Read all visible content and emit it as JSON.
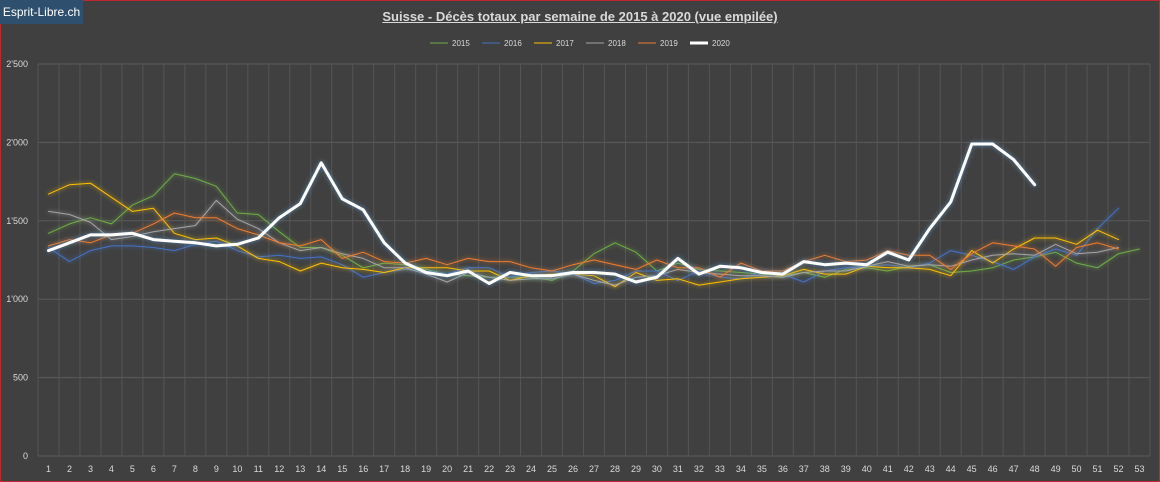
{
  "watermark": "Esprit-Libre.ch",
  "chart_data": {
    "type": "line",
    "title": "Suisse - Décès totaux par semaine de 2015  à 2020  (vue empilée)",
    "xlabel": "",
    "ylabel": "",
    "x": [
      1,
      2,
      3,
      4,
      5,
      6,
      7,
      8,
      9,
      10,
      11,
      12,
      13,
      14,
      15,
      16,
      17,
      18,
      19,
      20,
      21,
      22,
      23,
      24,
      25,
      26,
      27,
      28,
      29,
      30,
      31,
      32,
      33,
      34,
      35,
      36,
      37,
      38,
      39,
      40,
      41,
      42,
      43,
      44,
      45,
      46,
      47,
      48,
      49,
      50,
      51,
      52,
      53
    ],
    "ylim": [
      0,
      2500
    ],
    "yticks": [
      0,
      500,
      1000,
      1500,
      2000,
      2500
    ],
    "ytick_labels": [
      "0",
      "500",
      "1'000",
      "1'500",
      "2'000",
      "2'500"
    ],
    "grid": true,
    "legend_position": "top-center",
    "series": [
      {
        "name": "2015",
        "color": "#70ad47",
        "values": [
          1420,
          1480,
          1520,
          1480,
          1600,
          1660,
          1800,
          1770,
          1720,
          1550,
          1540,
          1430,
          1330,
          1330,
          1280,
          1200,
          1230,
          1220,
          1190,
          1160,
          1150,
          1140,
          1140,
          1140,
          1120,
          1180,
          1290,
          1360,
          1300,
          1180,
          1230,
          1190,
          1180,
          1170,
          1160,
          1150,
          1170,
          1140,
          1190,
          1200,
          1180,
          1210,
          1220,
          1170,
          1180,
          1200,
          1250,
          1270,
          1300,
          1230,
          1200,
          1290,
          1320
        ]
      },
      {
        "name": "2016",
        "color": "#4472c4",
        "values": [
          1330,
          1240,
          1310,
          1340,
          1340,
          1330,
          1310,
          1350,
          1370,
          1310,
          1270,
          1280,
          1260,
          1270,
          1220,
          1140,
          1170,
          1190,
          1180,
          1160,
          1200,
          1200,
          1140,
          1170,
          1180,
          1160,
          1100,
          1120,
          1180,
          1180,
          1120,
          1180,
          1140,
          1130,
          1170,
          1160,
          1110,
          1180,
          1200,
          1210,
          1220,
          1200,
          1230,
          1310,
          1280,
          1240,
          1190,
          1270,
          1320,
          1280,
          1450,
          1580,
          null
        ]
      },
      {
        "name": "2017",
        "color": "#ffc000",
        "values": [
          1670,
          1730,
          1740,
          1650,
          1560,
          1580,
          1420,
          1380,
          1390,
          1340,
          1260,
          1240,
          1180,
          1230,
          1200,
          1190,
          1170,
          1200,
          1200,
          1200,
          1180,
          1180,
          1120,
          1150,
          1160,
          1160,
          1150,
          1080,
          1170,
          1120,
          1130,
          1090,
          1110,
          1130,
          1140,
          1150,
          1190,
          1160,
          1160,
          1210,
          1200,
          1200,
          1190,
          1150,
          1310,
          1230,
          1320,
          1390,
          1390,
          1350,
          1440,
          1380,
          null
        ]
      },
      {
        "name": "2018",
        "color": "#a5a5a5",
        "values": [
          1560,
          1540,
          1490,
          1380,
          1400,
          1430,
          1450,
          1470,
          1630,
          1510,
          1450,
          1360,
          1310,
          1330,
          1290,
          1260,
          1200,
          1200,
          1160,
          1110,
          1170,
          1140,
          1120,
          1130,
          1130,
          1160,
          1120,
          1090,
          1140,
          1150,
          1190,
          1170,
          1160,
          1150,
          1150,
          1140,
          1170,
          1180,
          1180,
          1210,
          1240,
          1210,
          1220,
          1210,
          1250,
          1280,
          1290,
          1280,
          1350,
          1290,
          1300,
          1330,
          null
        ]
      },
      {
        "name": "2019",
        "color": "#ed7d31",
        "values": [
          1340,
          1380,
          1360,
          1410,
          1420,
          1480,
          1550,
          1520,
          1520,
          1450,
          1410,
          1360,
          1340,
          1380,
          1260,
          1300,
          1240,
          1230,
          1260,
          1220,
          1260,
          1240,
          1240,
          1200,
          1180,
          1220,
          1250,
          1220,
          1190,
          1250,
          1200,
          1200,
          1140,
          1230,
          1180,
          1180,
          1240,
          1280,
          1240,
          1250,
          1310,
          1280,
          1280,
          1190,
          1290,
          1360,
          1340,
          1320,
          1210,
          1330,
          1360,
          1320,
          null
        ]
      },
      {
        "name": "2020",
        "color": "#ffffff",
        "values": [
          1310,
          1360,
          1410,
          1410,
          1420,
          1380,
          1370,
          1360,
          1340,
          1350,
          1390,
          1520,
          1610,
          1870,
          1640,
          1570,
          1360,
          1230,
          1170,
          1150,
          1180,
          1100,
          1170,
          1150,
          1150,
          1170,
          1170,
          1160,
          1110,
          1140,
          1260,
          1160,
          1210,
          1200,
          1170,
          1160,
          1240,
          1220,
          1230,
          1220,
          1300,
          1250,
          1450,
          1620,
          1990,
          1990,
          1890,
          1730,
          null,
          null,
          null,
          null,
          null
        ]
      }
    ]
  }
}
